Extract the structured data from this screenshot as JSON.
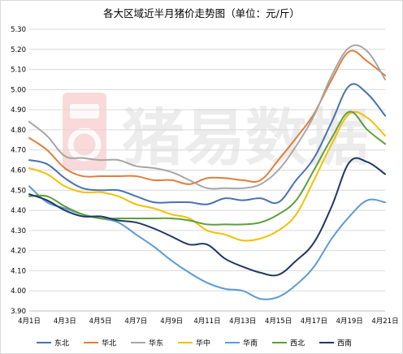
{
  "chart_data": {
    "type": "line",
    "title": "各大区域近半月猪价走势图（单位：元/斤）",
    "xlabel": "",
    "ylabel": "",
    "x": [
      "4月1日",
      "4月2日",
      "4月3日",
      "4月4日",
      "4月5日",
      "4月6日",
      "4月7日",
      "4月8日",
      "4月9日",
      "4月10日",
      "4月11日",
      "4月12日",
      "4月13日",
      "4月14日",
      "4月15日",
      "4月16日",
      "4月17日",
      "4月18日",
      "4月19日",
      "4月20日",
      "4月21日"
    ],
    "x_tick_labels": [
      "4月1日",
      "4月3日",
      "4月5日",
      "4月7日",
      "4月9日",
      "4月11日",
      "4月13日",
      "4月15日",
      "4月17日",
      "4月19日",
      "4月21日"
    ],
    "ylim": [
      3.9,
      5.3
    ],
    "y_ticks": [
      "3.90",
      "4.00",
      "4.10",
      "4.20",
      "4.30",
      "4.40",
      "4.50",
      "4.60",
      "4.70",
      "4.80",
      "4.90",
      "5.00",
      "5.10",
      "5.20",
      "5.30"
    ],
    "grid": true,
    "legend_position": "bottom",
    "series": [
      {
        "name": "东北",
        "color": "#4a72b0",
        "values": [
          4.65,
          4.63,
          4.56,
          4.51,
          4.5,
          4.5,
          4.47,
          4.44,
          4.44,
          4.44,
          4.43,
          4.46,
          4.45,
          4.46,
          4.44,
          4.55,
          4.66,
          4.84,
          5.02,
          4.98,
          4.87
        ]
      },
      {
        "name": "华北",
        "color": "#e07d3c",
        "values": [
          4.76,
          4.7,
          4.61,
          4.57,
          4.57,
          4.57,
          4.57,
          4.55,
          4.55,
          4.53,
          4.56,
          4.56,
          4.55,
          4.55,
          4.65,
          4.76,
          4.88,
          5.05,
          5.19,
          5.14,
          5.07
        ]
      },
      {
        "name": "华东",
        "color": "#a6a6a6",
        "values": [
          4.84,
          4.77,
          4.67,
          4.66,
          4.65,
          4.65,
          4.62,
          4.61,
          4.59,
          4.55,
          4.51,
          4.51,
          4.51,
          4.53,
          4.6,
          4.72,
          4.87,
          5.07,
          5.21,
          5.19,
          5.05
        ]
      },
      {
        "name": "华中",
        "color": "#f4c000",
        "values": [
          4.61,
          4.58,
          4.52,
          4.49,
          4.49,
          4.47,
          4.43,
          4.41,
          4.38,
          4.36,
          4.3,
          4.28,
          4.25,
          4.26,
          4.3,
          4.38,
          4.55,
          4.73,
          4.88,
          4.86,
          4.77
        ]
      },
      {
        "name": "华南",
        "color": "#5b9bd5",
        "values": [
          4.52,
          4.44,
          4.41,
          4.38,
          4.36,
          4.34,
          4.28,
          4.22,
          4.15,
          4.09,
          4.04,
          4.01,
          4.0,
          3.96,
          3.97,
          4.03,
          4.12,
          4.26,
          4.37,
          4.45,
          4.44
        ]
      },
      {
        "name": "西北",
        "color": "#5e9e3c",
        "values": [
          4.47,
          4.47,
          4.42,
          4.38,
          4.36,
          4.36,
          4.36,
          4.36,
          4.36,
          4.35,
          4.33,
          4.33,
          4.33,
          4.34,
          4.38,
          4.45,
          4.6,
          4.76,
          4.89,
          4.8,
          4.73
        ]
      },
      {
        "name": "西南",
        "color": "#1f3864",
        "values": [
          4.48,
          4.45,
          4.4,
          4.37,
          4.37,
          4.35,
          4.34,
          4.31,
          4.27,
          4.23,
          4.23,
          4.16,
          4.12,
          4.09,
          4.08,
          4.15,
          4.24,
          4.42,
          4.64,
          4.64,
          4.58
        ]
      }
    ]
  },
  "watermark": {
    "logo_icon": "pig-logo-icon",
    "text": "猪易数据"
  }
}
